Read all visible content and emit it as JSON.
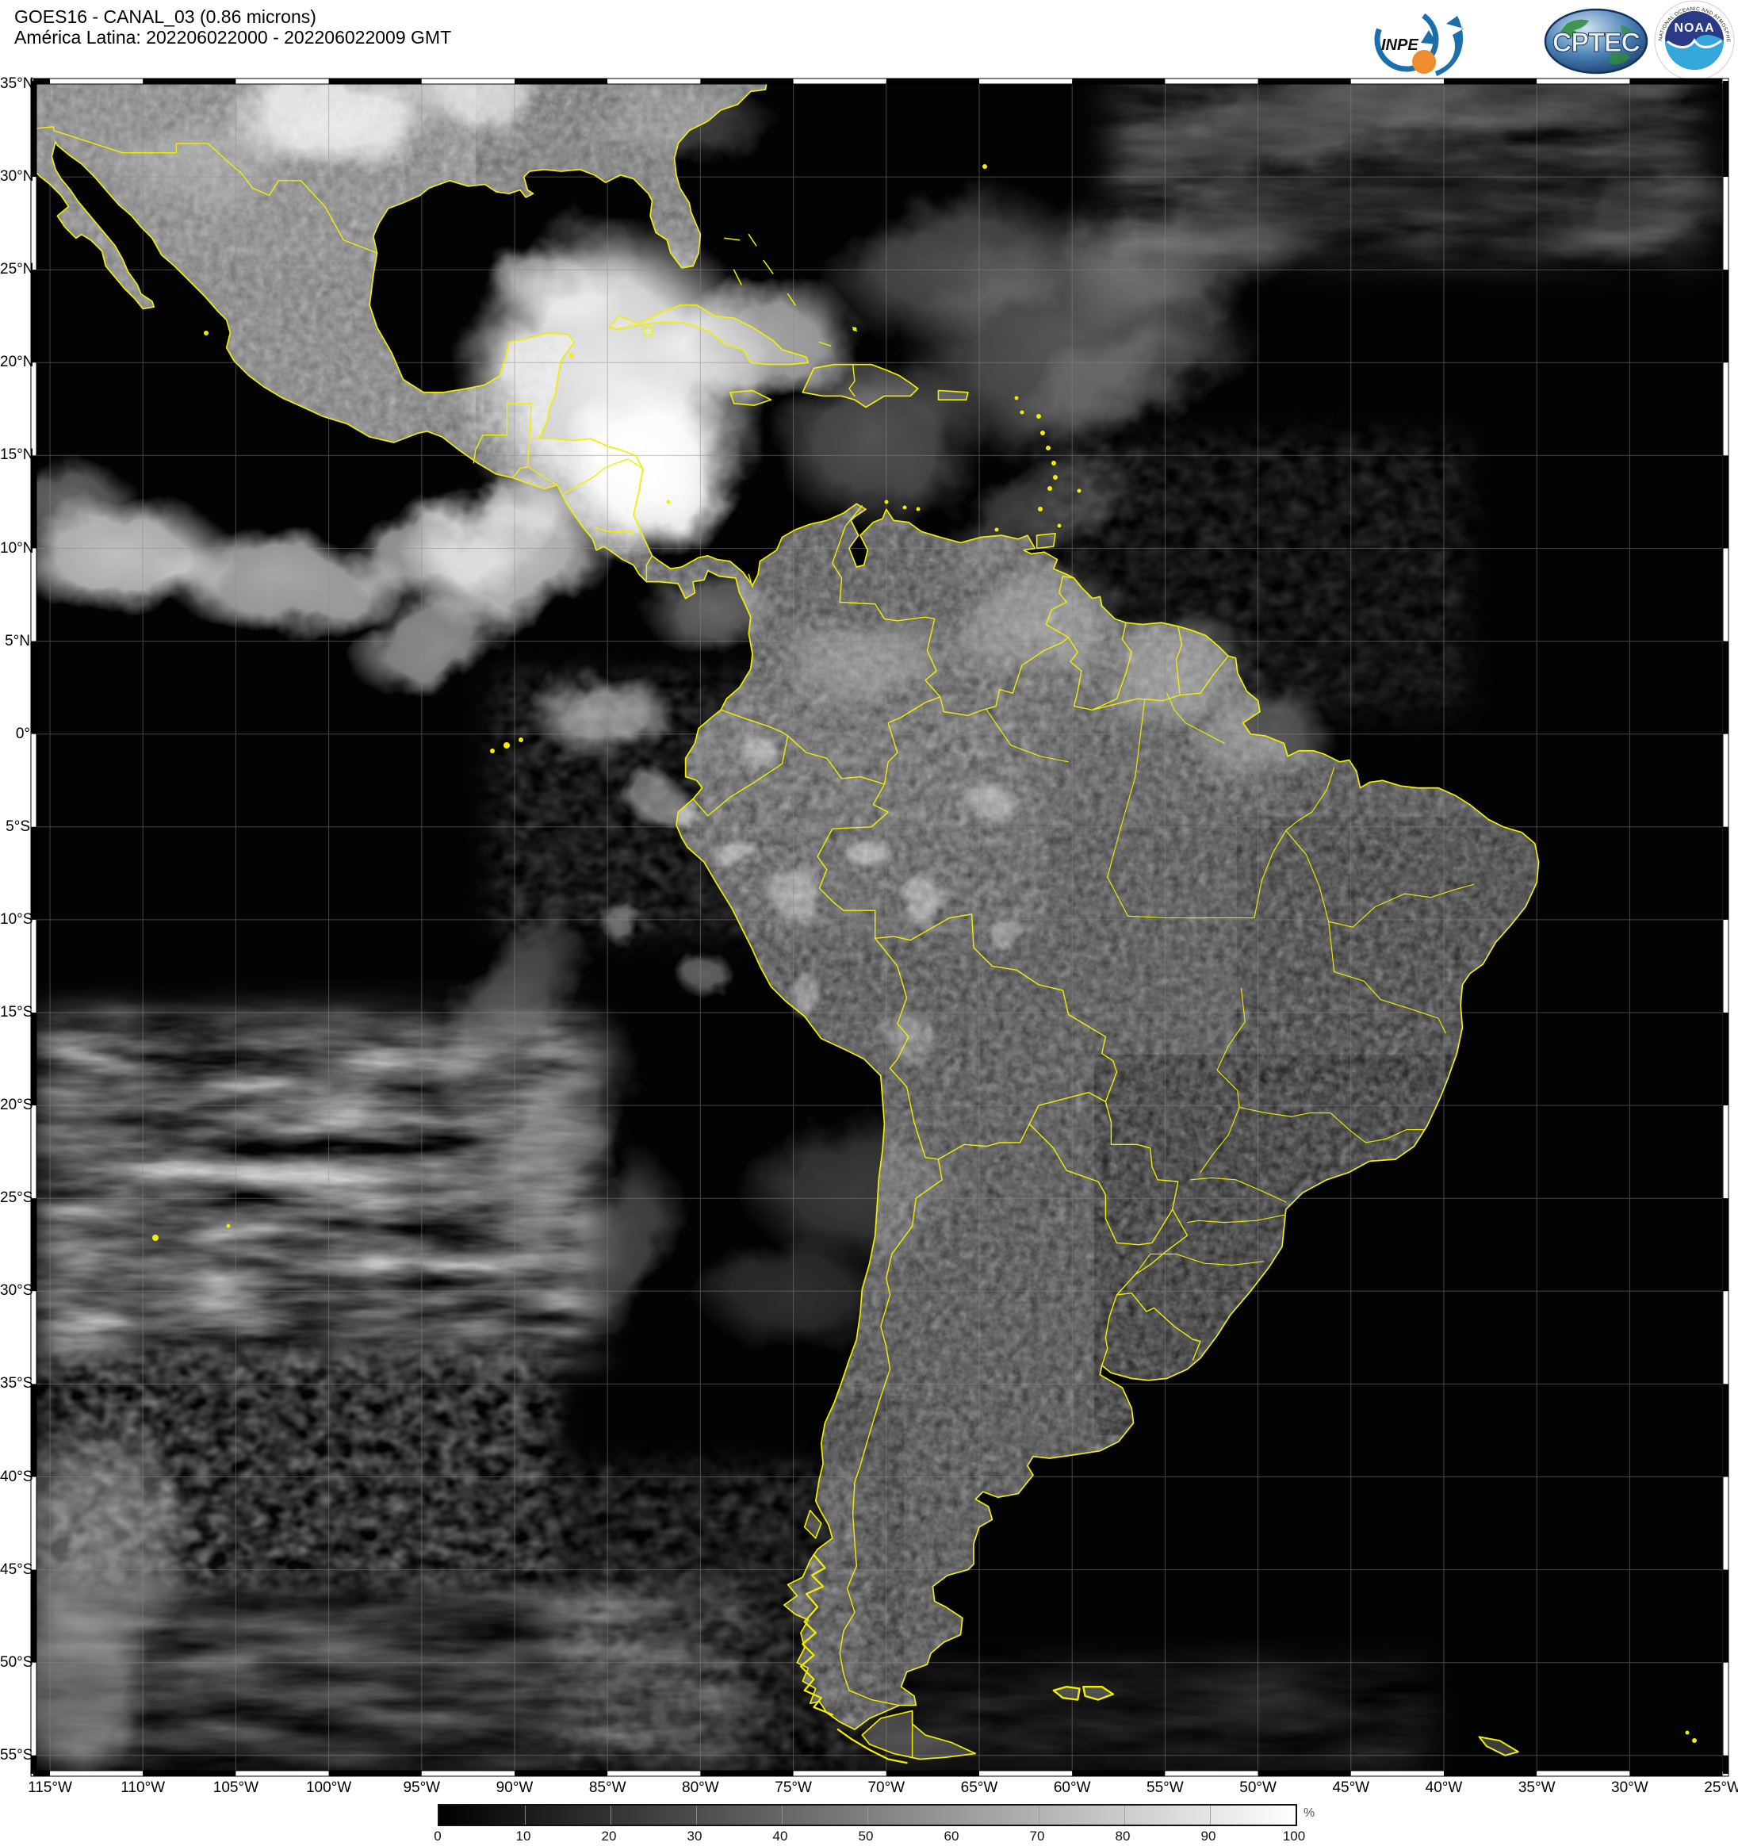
{
  "header": {
    "line1": "GOES16 - CANAL_03 (0.86 microns)",
    "line2": "América Latina: 202206022000 - 202206022009 GMT"
  },
  "logos": {
    "inpe_label": "INPE",
    "cptec_label": "CPTEC",
    "noaa_label": "NOAA",
    "noaa_ring_top": "NATIONAL OCEANIC AND ATMOSPHERIC ADMINISTRATION",
    "noaa_ring_bottom": "U.S. DEPARTMENT OF COMMERCE"
  },
  "map": {
    "lat_labels": [
      "35°N",
      "30°N",
      "25°N",
      "20°N",
      "15°N",
      "10°N",
      "5°N",
      "0°",
      "5°S",
      "10°S",
      "15°S",
      "20°S",
      "25°S",
      "30°S",
      "35°S",
      "40°S",
      "45°S",
      "50°S",
      "55°S"
    ],
    "lon_labels": [
      "115°W",
      "110°W",
      "105°W",
      "100°W",
      "95°W",
      "90°W",
      "85°W",
      "80°W",
      "75°W",
      "70°W",
      "65°W",
      "60°W",
      "55°W",
      "50°W",
      "45°W",
      "40°W",
      "35°W",
      "30°W",
      "25°W"
    ]
  },
  "colorbar": {
    "ticks": [
      "0",
      "10",
      "20",
      "30",
      "40",
      "50",
      "60",
      "70",
      "80",
      "90",
      "100"
    ],
    "unit": "%"
  },
  "colors": {
    "coastline": "#f2ee00",
    "land": "#3d3d3d",
    "ocean": "#030303"
  }
}
